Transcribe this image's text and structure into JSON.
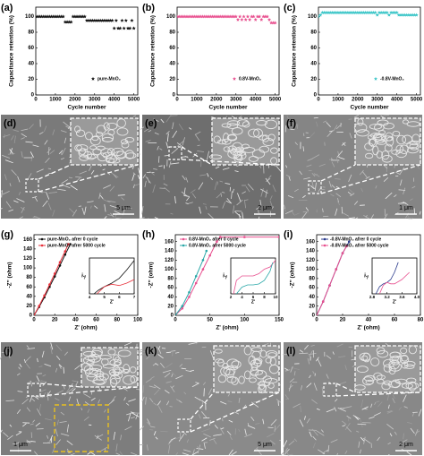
{
  "chart_data": [
    {
      "type": "scatter",
      "panel": "(a)",
      "x_label": "Cycle number",
      "y_label": "Capacitance retention (%)",
      "xlim": [
        0,
        5200
      ],
      "xticks": [
        0,
        1000,
        2000,
        3000,
        4000,
        5000
      ],
      "ylim": [
        0,
        112
      ],
      "yticks": [
        0,
        20,
        40,
        60,
        80,
        100
      ],
      "series": [
        {
          "name": "pure-MnO₂",
          "color": "#111111",
          "x": [
            0,
            100,
            200,
            300,
            400,
            500,
            600,
            700,
            800,
            900,
            1000,
            1100,
            1200,
            1300,
            1400,
            1500,
            1600,
            1700,
            1800,
            1900,
            2000,
            2100,
            2200,
            2300,
            2400,
            2500,
            2600,
            2700,
            2800,
            2900,
            3000,
            3100,
            3200,
            3300,
            3400,
            3500,
            3600,
            3700,
            3800,
            3900,
            4000,
            4100,
            4200,
            4300,
            4400,
            4500,
            4600,
            4700,
            4800,
            4900,
            5000
          ],
          "values": [
            100,
            100,
            100,
            100,
            100,
            100,
            100,
            100,
            100,
            100,
            100,
            100,
            100,
            100,
            100,
            93,
            93,
            93,
            93,
            100,
            100,
            100,
            100,
            100,
            100,
            100,
            95,
            95,
            95,
            95,
            95,
            95,
            95,
            95,
            95,
            95,
            95,
            95,
            95,
            95,
            85,
            95,
            85,
            85,
            95,
            85,
            95,
            85,
            85,
            95,
            85
          ]
        }
      ]
    },
    {
      "type": "scatter",
      "panel": "(b)",
      "x_label": "Cycle number",
      "y_label": "Capacitance retention (%)",
      "xlim": [
        0,
        5200
      ],
      "xticks": [
        0,
        1000,
        2000,
        3000,
        4000,
        5000
      ],
      "ylim": [
        0,
        112
      ],
      "yticks": [
        0,
        20,
        40,
        60,
        80,
        100
      ],
      "series": [
        {
          "name": "0.8V-MnO₂",
          "color": "#e8508f",
          "x": [
            0,
            100,
            200,
            300,
            400,
            500,
            600,
            700,
            800,
            900,
            1000,
            1100,
            1200,
            1300,
            1400,
            1500,
            1600,
            1700,
            1800,
            1900,
            2000,
            2100,
            2200,
            2300,
            2400,
            2500,
            2600,
            2700,
            2800,
            2900,
            3000,
            3100,
            3200,
            3300,
            3400,
            3500,
            3600,
            3700,
            3800,
            3900,
            4000,
            4100,
            4200,
            4300,
            4400,
            4500,
            4600,
            4700,
            4800,
            4900,
            5000
          ],
          "values": [
            100,
            100,
            100,
            100,
            100,
            100,
            100,
            100,
            100,
            100,
            100,
            100,
            100,
            100,
            100,
            100,
            100,
            100,
            100,
            100,
            100,
            100,
            100,
            100,
            100,
            100,
            100,
            100,
            100,
            100,
            100,
            96,
            100,
            96,
            100,
            96,
            100,
            96,
            100,
            100,
            96,
            100,
            100,
            96,
            100,
            100,
            100,
            96,
            92,
            92,
            92
          ]
        }
      ]
    },
    {
      "type": "scatter",
      "panel": "(c)",
      "x_label": "Cycle number",
      "y_label": "Capacitance retention (%)",
      "xlim": [
        0,
        5200
      ],
      "xticks": [
        0,
        1000,
        2000,
        3000,
        4000,
        5000
      ],
      "ylim": [
        0,
        112
      ],
      "yticks": [
        0,
        20,
        40,
        60,
        80,
        100
      ],
      "series": [
        {
          "name": "-0.8V-MnO₂",
          "color": "#3cc6c8",
          "x": [
            0,
            100,
            200,
            300,
            400,
            500,
            600,
            700,
            800,
            900,
            1000,
            1100,
            1200,
            1300,
            1400,
            1500,
            1600,
            1700,
            1800,
            1900,
            2000,
            2100,
            2200,
            2300,
            2400,
            2500,
            2600,
            2700,
            2800,
            2900,
            3000,
            3100,
            3200,
            3300,
            3400,
            3500,
            3600,
            3700,
            3800,
            3900,
            4000,
            4100,
            4200,
            4300,
            4400,
            4500,
            4600,
            4700,
            4800,
            4900,
            5000
          ],
          "values": [
            100,
            102,
            105,
            105,
            105,
            105,
            105,
            105,
            105,
            105,
            105,
            105,
            105,
            105,
            105,
            105,
            105,
            105,
            105,
            105,
            105,
            105,
            105,
            105,
            105,
            105,
            105,
            105,
            105,
            105,
            102,
            105,
            105,
            105,
            105,
            105,
            102,
            105,
            105,
            105,
            105,
            102,
            102,
            102,
            102,
            102,
            102,
            102,
            102,
            102,
            102
          ]
        }
      ]
    },
    {
      "type": "line",
      "panel": "(g)",
      "x_label": "Z' (ohm)",
      "y_label": "-Z'' (ohm)",
      "xlim": [
        0,
        100
      ],
      "xticks": [
        0,
        20,
        40,
        60,
        80,
        100
      ],
      "ylim": [
        0,
        170
      ],
      "yticks": [
        0,
        20,
        40,
        60,
        80,
        100,
        120,
        140,
        160
      ],
      "series": [
        {
          "name": "pure-MnO₂ afrer 0 cycle",
          "color": "#111111",
          "x": [
            0,
            5,
            10,
            15,
            20,
            25,
            30,
            35
          ],
          "values": [
            0,
            18,
            38,
            60,
            82,
            105,
            128,
            150
          ]
        },
        {
          "name": "pure-MnO₂ afrer 5000 cycle",
          "color": "#e8323c",
          "x": [
            0,
            5,
            10,
            15,
            20,
            25,
            30,
            33
          ],
          "values": [
            0,
            20,
            42,
            65,
            88,
            112,
            135,
            150
          ]
        }
      ],
      "inset": {
        "type": "line",
        "x_label": "Z'",
        "y_label": "-Z''",
        "xlim": [
          4,
          7
        ],
        "xticks": [
          4,
          5,
          6,
          7
        ],
        "ylim": [
          0,
          3
        ],
        "series": [
          {
            "color": "#111111",
            "x": [
              4.3,
              4.6,
              5,
              5.5,
              6,
              6.5,
              7
            ],
            "values": [
              0,
              0.3,
              0.6,
              0.9,
              1.3,
              2.0,
              2.8
            ]
          },
          {
            "color": "#e8323c",
            "x": [
              4.5,
              5,
              5.5,
              6,
              6.5,
              7
            ],
            "values": [
              0,
              0.6,
              0.8,
              0.7,
              0.9,
              1.2
            ]
          }
        ]
      }
    },
    {
      "type": "line",
      "panel": "(h)",
      "x_label": "Z' (ohm)",
      "y_label": "-Z'' (ohm)",
      "xlim": [
        0,
        150
      ],
      "xticks": [
        0,
        50,
        100,
        150
      ],
      "ylim": [
        0,
        175
      ],
      "yticks": [
        0,
        20,
        40,
        60,
        80,
        100,
        120,
        140,
        160
      ],
      "series": [
        {
          "name": "0.8V-MnO₂ afrer 0 cycle",
          "color": "#e8508f",
          "x": [
            0,
            10,
            20,
            30,
            40,
            50,
            60,
            65,
            100,
            150
          ],
          "values": [
            0,
            15,
            40,
            70,
            100,
            130,
            160,
            170,
            170,
            170
          ]
        },
        {
          "name": "0.8V-MnO₂ afrer 5000 cycle",
          "color": "#2aa8a8",
          "x": [
            0,
            10,
            20,
            30,
            40,
            45
          ],
          "values": [
            0,
            20,
            50,
            85,
            120,
            140
          ]
        }
      ],
      "inset": {
        "type": "line",
        "x_label": "Z'",
        "y_label": "-Z''",
        "xlim": [
          2,
          10
        ],
        "xticks": [
          2,
          4,
          6,
          8,
          10
        ],
        "ylim": [
          0,
          8
        ],
        "series": [
          {
            "color": "#e8508f",
            "x": [
              2.5,
              3,
              4,
              5,
              6,
              7,
              8,
              9,
              10
            ],
            "values": [
              0,
              3,
              4,
              4,
              4,
              4.5,
              5.5,
              6,
              7.5
            ]
          },
          {
            "color": "#2aa8a8",
            "x": [
              3,
              4,
              5,
              6,
              7,
              8,
              9,
              9.5
            ],
            "values": [
              0,
              1.5,
              2,
              2,
              2.2,
              3,
              5,
              7
            ]
          }
        ]
      }
    },
    {
      "type": "line",
      "panel": "(i)",
      "x_label": "Z' (ohm)",
      "y_label": "-Z'' (ohm)",
      "xlim": [
        0,
        80
      ],
      "xticks": [
        0,
        20,
        40,
        60,
        80
      ],
      "ylim": [
        0,
        175
      ],
      "yticks": [
        0,
        20,
        40,
        60,
        80,
        100,
        120,
        140,
        160
      ],
      "series": [
        {
          "name": "-0.8V-MnO₂ afrer 0 cycle",
          "color": "#2a3a8c",
          "x": [
            0,
            5,
            10,
            15,
            20,
            25
          ],
          "values": [
            0,
            30,
            65,
            100,
            135,
            160
          ]
        },
        {
          "name": "-0.8V-MnO₂ afrer 5000 cycle",
          "color": "#e8508f",
          "x": [
            0,
            5,
            10,
            15,
            20,
            23
          ],
          "values": [
            0,
            30,
            65,
            100,
            135,
            150
          ]
        }
      ],
      "inset": {
        "type": "line",
        "x_label": "Z'",
        "y_label": "-Z''",
        "xlim": [
          2.8,
          4
        ],
        "xticks": [
          2.8,
          3.2,
          3.6,
          {
            "value": 4,
            "label": "4.0"
          }
        ],
        "ylim": [
          0,
          2.5
        ],
        "series": [
          {
            "color": "#2a3a8c",
            "x": [
              2.9,
              3.0,
              3.1,
              3.2,
              3.3,
              3.4,
              3.5
            ],
            "values": [
              0,
              0.5,
              0.7,
              0.8,
              1.0,
              1.5,
              2.2
            ]
          },
          {
            "color": "#e8508f",
            "x": [
              3.0,
              3.1,
              3.2,
              3.3,
              3.4,
              3.6,
              3.8
            ],
            "values": [
              0,
              0.6,
              0.8,
              0.7,
              0.7,
              1.0,
              1.5
            ]
          }
        ]
      }
    }
  ],
  "images": [
    {
      "label": "(d)",
      "scale_bar": "5 μm"
    },
    {
      "label": "(e)",
      "scale_bar": "2 μm"
    },
    {
      "label": "(f)",
      "scale_bar": "1 μm"
    },
    {
      "label": "(j)",
      "scale_bar": "1 μm"
    },
    {
      "label": "(k)",
      "scale_bar": "5 μm"
    },
    {
      "label": "(l)",
      "scale_bar": "2 μm"
    }
  ]
}
